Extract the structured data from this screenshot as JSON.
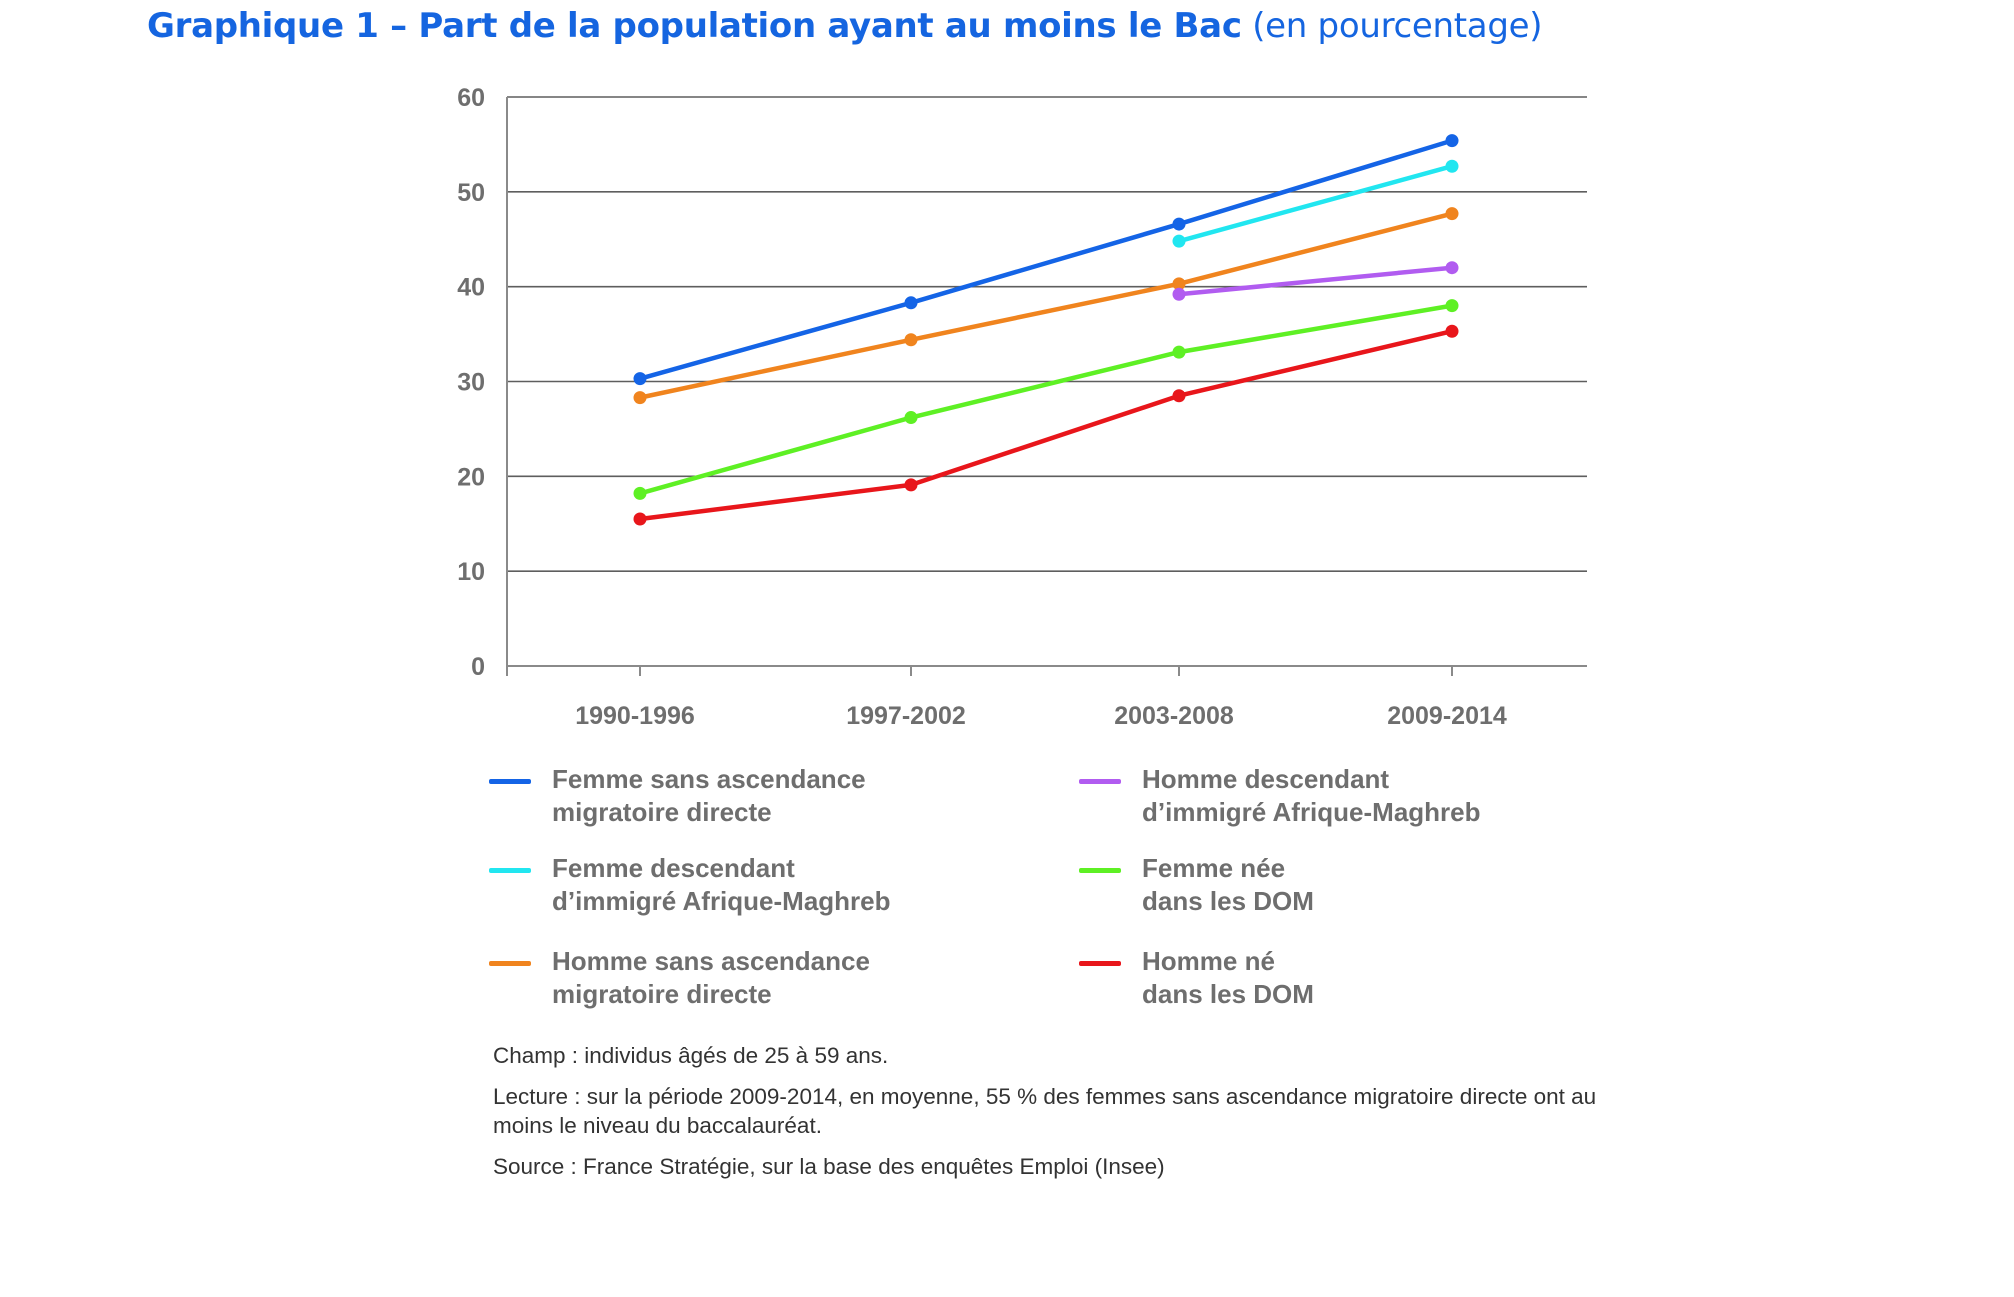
{
  "title": {
    "bold": "Graphique 1 – Part de la population ayant au moins le Bac",
    "normal": "(en pourcentage)"
  },
  "chart_data": {
    "type": "line",
    "title": "Graphique 1 – Part de la population ayant au moins le Bac (en pourcentage)",
    "xlabel": "",
    "ylabel": "",
    "categories": [
      "1990-1996",
      "1997-2002",
      "2003-2008",
      "2009-2014"
    ],
    "ylim": [
      0,
      60
    ],
    "yticks": [
      0,
      10,
      20,
      30,
      40,
      50,
      60
    ],
    "grid": true,
    "series": [
      {
        "name": "Femme sans ascendance migratoire directe",
        "color": "#1464e6",
        "values": [
          30.3,
          38.3,
          46.6,
          55.4
        ]
      },
      {
        "name": "Femme descendant d’immigré Afrique-Maghreb",
        "color": "#21e6f0",
        "values": [
          null,
          null,
          44.8,
          52.7
        ]
      },
      {
        "name": "Homme sans ascendance migratoire directe",
        "color": "#f0841e",
        "values": [
          28.3,
          34.4,
          40.3,
          47.7
        ]
      },
      {
        "name": "Homme descendant d’immigré Afrique-Maghreb",
        "color": "#b15cf0",
        "values": [
          null,
          null,
          39.2,
          42.0
        ]
      },
      {
        "name": "Femme née dans les DOM",
        "color": "#5ef024",
        "values": [
          18.2,
          26.2,
          33.1,
          38.0
        ]
      },
      {
        "name": "Homme né dans les DOM",
        "color": "#e8161b",
        "values": [
          15.5,
          19.1,
          28.5,
          35.3
        ]
      }
    ]
  },
  "legend": [
    {
      "line1": "Femme sans ascendance",
      "line2": "migratoire directe",
      "color": "#1464e6"
    },
    {
      "line1": "Homme descendant",
      "line2": "d’immigré Afrique-Maghreb",
      "color": "#b15cf0"
    },
    {
      "line1": "Femme descendant",
      "line2": "d’immigré Afrique-Maghreb",
      "color": "#21e6f0"
    },
    {
      "line1": "Femme née",
      "line2": "dans les DOM",
      "color": "#5ef024"
    },
    {
      "line1": "Homme sans ascendance",
      "line2": "migratoire directe",
      "color": "#f0841e"
    },
    {
      "line1": "Homme né",
      "line2": "dans les DOM",
      "color": "#e8161b"
    }
  ],
  "notes": {
    "champ": "Champ : individus âgés de 25 à 59 ans.",
    "lecture": "Lecture : sur la période 2009-2014, en moyenne, 55 % des femmes sans ascendance migratoire directe ont au moins le niveau du baccalauréat.",
    "source": "Source : France Stratégie, sur la base des enquêtes Emploi (Insee)"
  },
  "colors": {
    "title": "#1565e0",
    "axis_text": "#6e6e6e",
    "grid": "#5e5e5e"
  }
}
